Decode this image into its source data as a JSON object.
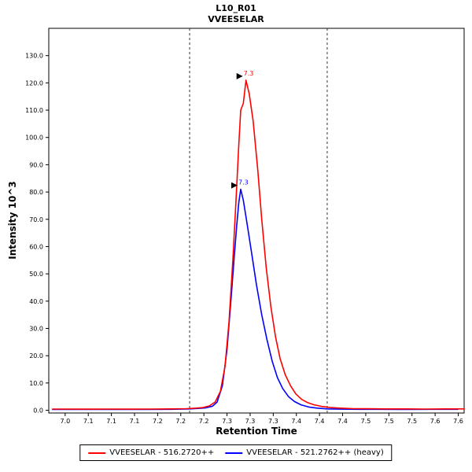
{
  "chart_data": {
    "type": "line",
    "title": "L10_R01",
    "subtitle": "VVEESELAR",
    "xlabel": "Retention Time",
    "ylabel": "Intensity 10^3",
    "xlim": [
      6.975,
      7.609
    ],
    "ylim": [
      -1,
      140
    ],
    "grid": false,
    "legend_position": "bottom",
    "x_ticks": {
      "start": 7.0,
      "end": 7.6,
      "labels": [
        "7.0",
        "7.1",
        "7.1",
        "7.1",
        "7.2",
        "7.2",
        "7.2",
        "7.3",
        "7.3",
        "7.3",
        "7.4",
        "7.4",
        "7.4",
        "7.5",
        "7.5",
        "7.5",
        "7.6",
        "7.6"
      ]
    },
    "y_ticks": {
      "step": 10,
      "count": 14,
      "decimals": 1
    },
    "boundaries": [
      7.19,
      7.4
    ],
    "boundary_style": {
      "color": "#333333",
      "dash": "3,3"
    },
    "series": [
      {
        "id": "light",
        "label": "VVEESELAR - 516.2720++",
        "color": "#FF0000",
        "points": [
          [
            6.98,
            0.45
          ],
          [
            7.02,
            0.4
          ],
          [
            7.06,
            0.45
          ],
          [
            7.1,
            0.4
          ],
          [
            7.13,
            0.45
          ],
          [
            7.16,
            0.5
          ],
          [
            7.185,
            0.6
          ],
          [
            7.2,
            0.8
          ],
          [
            7.21,
            1.0
          ],
          [
            7.22,
            1.6
          ],
          [
            7.229,
            3
          ],
          [
            7.237,
            7
          ],
          [
            7.244,
            16
          ],
          [
            7.25,
            32
          ],
          [
            7.256,
            55
          ],
          [
            7.261,
            78
          ],
          [
            7.265,
            97
          ],
          [
            7.268,
            110
          ],
          [
            7.272,
            112.5
          ],
          [
            7.276,
            121
          ],
          [
            7.281,
            116
          ],
          [
            7.287,
            106
          ],
          [
            7.294,
            88
          ],
          [
            7.3,
            70
          ],
          [
            7.307,
            52
          ],
          [
            7.314,
            38
          ],
          [
            7.321,
            27
          ],
          [
            7.328,
            19
          ],
          [
            7.336,
            13
          ],
          [
            7.344,
            9
          ],
          [
            7.352,
            6
          ],
          [
            7.361,
            4
          ],
          [
            7.37,
            2.8
          ],
          [
            7.38,
            2
          ],
          [
            7.392,
            1.4
          ],
          [
            7.405,
            1.0
          ],
          [
            7.42,
            0.8
          ],
          [
            7.44,
            0.6
          ],
          [
            7.46,
            0.55
          ],
          [
            7.49,
            0.5
          ],
          [
            7.52,
            0.5
          ],
          [
            7.55,
            0.45
          ],
          [
            7.58,
            0.5
          ],
          [
            7.61,
            0.5
          ]
        ]
      },
      {
        "id": "heavy",
        "label": "VVEESELAR - 521.2762++ (heavy)",
        "color": "#0000FF",
        "points": [
          [
            6.98,
            0.3
          ],
          [
            7.03,
            0.3
          ],
          [
            7.08,
            0.3
          ],
          [
            7.12,
            0.3
          ],
          [
            7.16,
            0.35
          ],
          [
            7.19,
            0.5
          ],
          [
            7.205,
            0.7
          ],
          [
            7.215,
            0.9
          ],
          [
            7.225,
            1.5
          ],
          [
            7.232,
            3
          ],
          [
            7.24,
            9
          ],
          [
            7.247,
            22
          ],
          [
            7.253,
            40
          ],
          [
            7.258,
            56
          ],
          [
            7.262,
            68
          ],
          [
            7.265,
            76
          ],
          [
            7.268,
            81
          ],
          [
            7.272,
            77
          ],
          [
            7.278,
            68
          ],
          [
            7.285,
            57
          ],
          [
            7.292,
            46
          ],
          [
            7.3,
            35
          ],
          [
            7.308,
            26
          ],
          [
            7.316,
            18
          ],
          [
            7.324,
            12
          ],
          [
            7.332,
            8
          ],
          [
            7.341,
            5
          ],
          [
            7.35,
            3.2
          ],
          [
            7.36,
            2
          ],
          [
            7.372,
            1.2
          ],
          [
            7.385,
            0.8
          ],
          [
            7.4,
            0.5
          ],
          [
            7.42,
            0.4
          ],
          [
            7.45,
            0.35
          ],
          [
            7.48,
            0.35
          ],
          [
            7.52,
            0.3
          ],
          [
            7.56,
            0.35
          ],
          [
            7.6,
            0.35
          ]
        ]
      }
    ],
    "annotations": [
      {
        "text": "7.3",
        "color": "#FF0000",
        "x": 7.276,
        "y": 121
      },
      {
        "text": "7.3",
        "color": "#0000FF",
        "x": 7.268,
        "y": 81
      }
    ]
  }
}
